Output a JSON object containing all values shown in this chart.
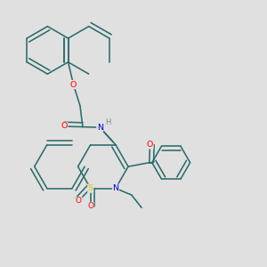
{
  "background_color": "#e0e0e0",
  "bond_color": "#2d6b6b",
  "figsize": [
    3.0,
    3.0
  ],
  "dpi": 100,
  "atom_colors": {
    "O": "#ff0000",
    "N": "#0000cc",
    "S": "#cccc00",
    "H": "#888888",
    "C": "#2d6b6b"
  },
  "lw": 1.15,
  "ds": 0.016
}
